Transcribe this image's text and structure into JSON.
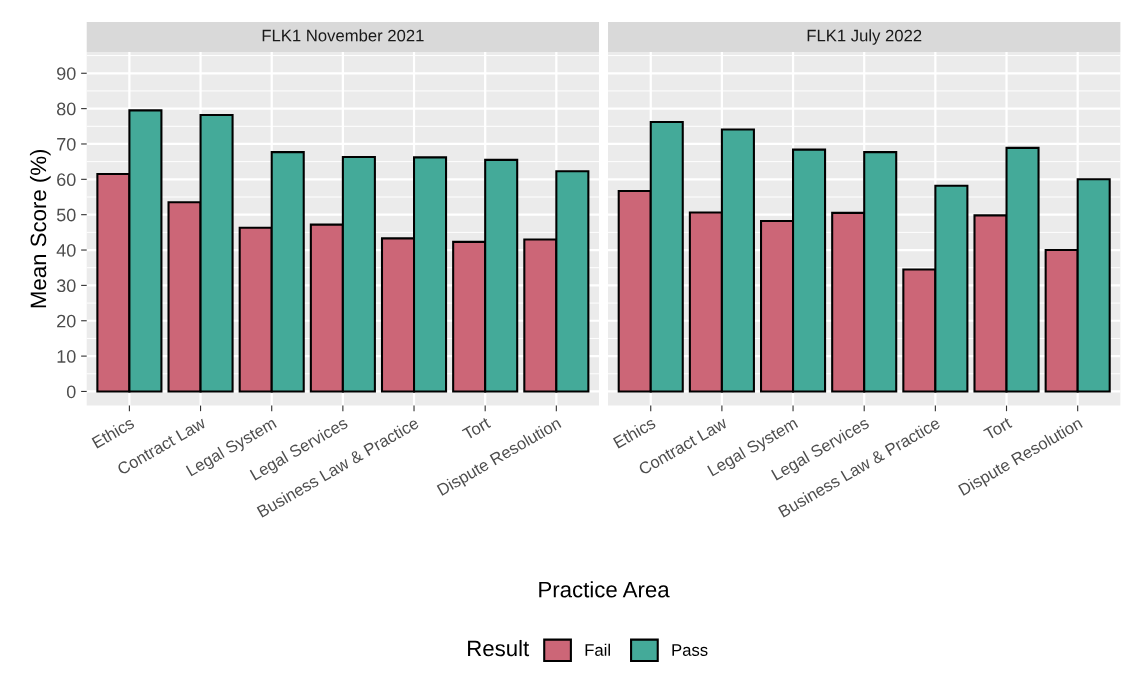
{
  "chart_data": [
    {
      "type": "bar",
      "title": "FLK1 November 2021",
      "xlabel": "Practice Area",
      "ylabel": "Mean Score (%)",
      "legend_title": "Result",
      "legend": "bottom",
      "grid": true,
      "categories": [
        "Ethics",
        "Contract Law",
        "Legal System",
        "Legal Services",
        "Business Law & Practice",
        "Tort",
        "Dispute Resolution"
      ],
      "series": [
        {
          "name": "Fail",
          "color": "#cc6677",
          "values": [
            61.5,
            53.5,
            46.3,
            47.2,
            43.3,
            42.3,
            43.0
          ]
        },
        {
          "name": "Pass",
          "color": "#44aa99",
          "values": [
            79.5,
            78.2,
            67.7,
            66.3,
            66.2,
            65.5,
            62.3
          ]
        }
      ],
      "ylim": [
        -4,
        96
      ],
      "yticks": [
        0,
        10,
        20,
        30,
        40,
        50,
        60,
        70,
        80,
        90
      ]
    },
    {
      "type": "bar",
      "title": "FLK1 July 2022",
      "grid": true,
      "tick_labels": "x",
      "categories": [
        "Ethics",
        "Contract Law",
        "Legal System",
        "Legal Services",
        "Business Law & Practice",
        "Tort",
        "Dispute Resolution"
      ],
      "series": [
        {
          "color": "#cc6677",
          "values": [
            56.7,
            50.6,
            48.2,
            50.5,
            34.5,
            49.8,
            40.0
          ]
        },
        {
          "color": "#44aa99",
          "values": [
            76.2,
            74.1,
            68.4,
            67.7,
            58.2,
            68.9,
            60.0
          ]
        }
      ],
      "ylim": [
        -4,
        96
      ],
      "yticks": [
        0,
        10,
        20,
        30,
        40,
        50,
        60,
        70,
        80,
        90
      ]
    }
  ]
}
